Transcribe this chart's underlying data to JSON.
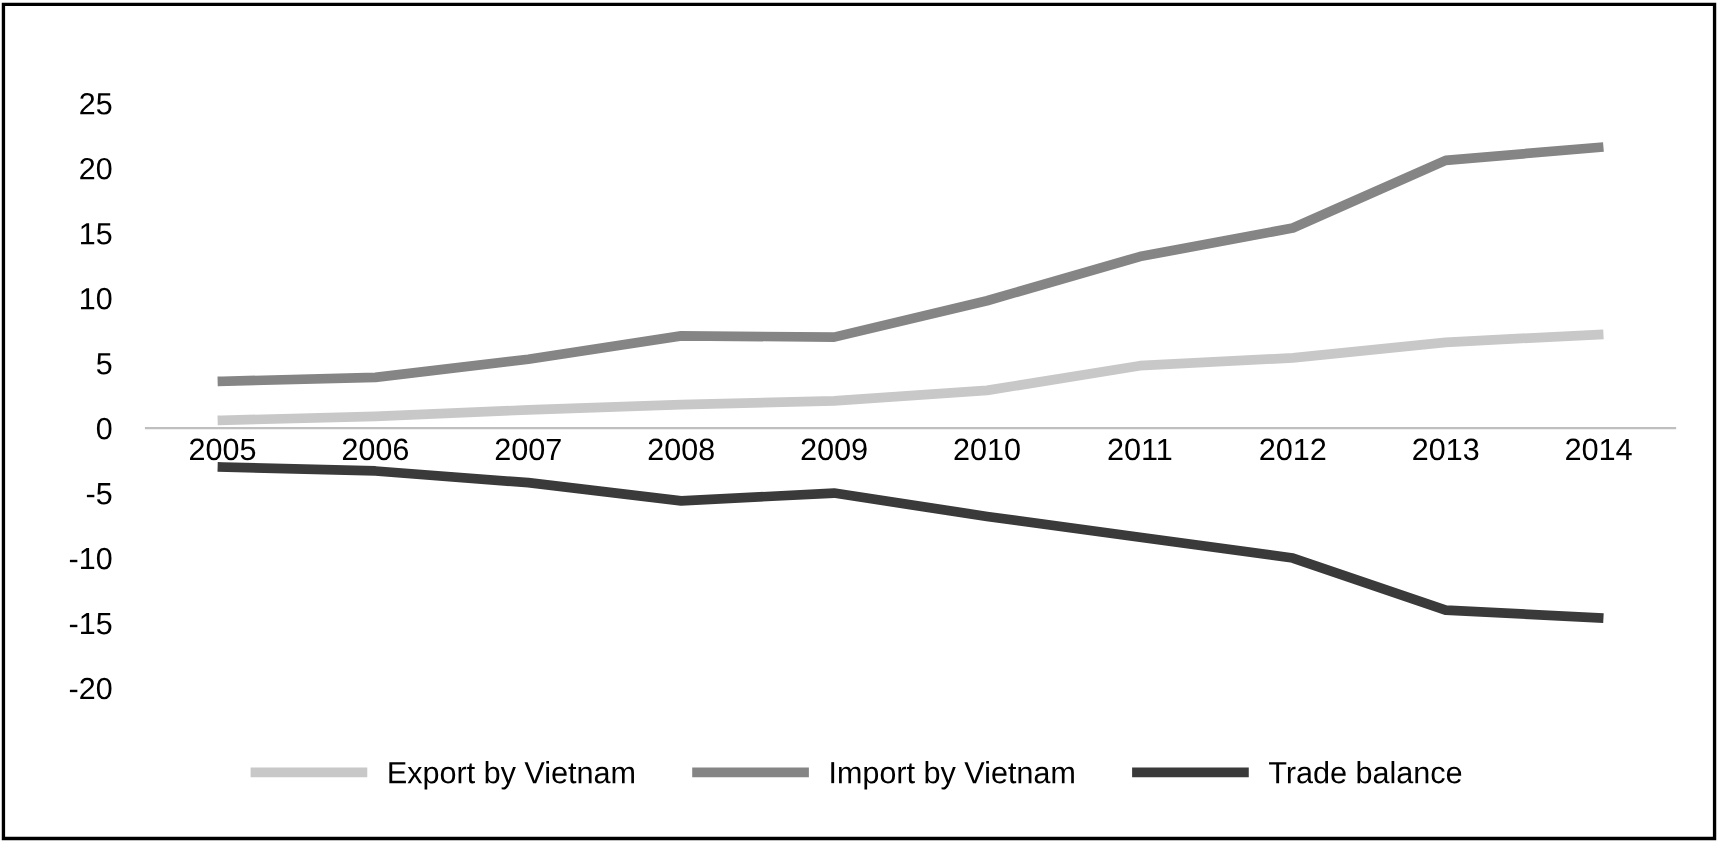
{
  "chart_data": {
    "type": "line",
    "categories": [
      "2005",
      "2006",
      "2007",
      "2008",
      "2009",
      "2010",
      "2011",
      "2012",
      "2013",
      "2014"
    ],
    "series": [
      {
        "name": "Export by Vietnam",
        "color": "#c8c8c8",
        "values": [
          0.6,
          0.9,
          1.4,
          1.8,
          2.1,
          2.9,
          4.8,
          5.4,
          6.6,
          7.2
        ]
      },
      {
        "name": "Import by Vietnam",
        "color": "#858585",
        "values": [
          3.6,
          3.9,
          5.3,
          7.1,
          7.0,
          9.8,
          13.2,
          15.4,
          20.6,
          21.6
        ]
      },
      {
        "name": "Trade balance",
        "color": "#3a3a3a",
        "values": [
          -3.0,
          -3.3,
          -4.2,
          -5.6,
          -5.0,
          -6.8,
          -8.4,
          -10.0,
          -14.0,
          -14.6
        ]
      }
    ],
    "ylim": [
      -20,
      25
    ],
    "yticks": [
      -20,
      -15,
      -10,
      -5,
      0,
      5,
      10,
      15,
      20,
      25
    ],
    "grid": false,
    "legend": "bottom",
    "marker": "none",
    "line_style": "solid"
  }
}
